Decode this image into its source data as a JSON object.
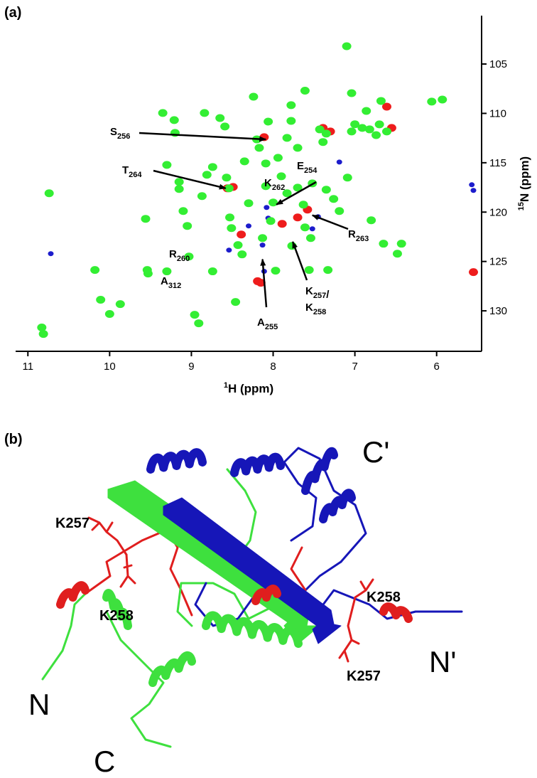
{
  "chart_data": {
    "type": "scatter",
    "panel_label": "(a)",
    "x_label": {
      "sup": "1",
      "text": "H (ppm)"
    },
    "y_label": {
      "sup": "15",
      "text": "N (ppm)"
    },
    "xlim": [
      11.15,
      5.45
    ],
    "xticks": [
      11,
      10,
      9,
      8,
      7,
      6
    ],
    "ylim": [
      134.1,
      100.1
    ],
    "yticks": [
      105,
      110,
      115,
      120,
      125,
      130
    ],
    "y_axis_side": "right",
    "grid": false,
    "series": [
      {
        "color": "#ee1c1c",
        "x": [
          8.11,
          8.56,
          8.49,
          7.89,
          7.7,
          7.58,
          8.15,
          8.19,
          7.39,
          7.3,
          5.55,
          8.39,
          6.61,
          6.55
        ],
        "values": [
          112.41,
          117.59,
          117.45,
          121.19,
          120.54,
          119.75,
          127.16,
          127.0,
          111.47,
          111.83,
          126.08,
          122.27,
          109.32,
          111.47
        ]
      },
      {
        "color": "#1c1ccc",
        "x": [
          10.72,
          8.3,
          8.06,
          8.11,
          7.45,
          7.52,
          7.19,
          5.55,
          5.57,
          8.13,
          8.08,
          8.54
        ],
        "values": [
          124.21,
          121.4,
          120.61,
          126.0,
          120.47,
          121.69,
          114.93,
          117.8,
          117.23,
          123.34,
          119.53,
          123.85
        ]
      },
      {
        "color": "#33ee33",
        "x": [
          10.83,
          10.81,
          10.74,
          10.18,
          10.11,
          10.0,
          9.87,
          9.35,
          9.21,
          9.2,
          9.15,
          9.15,
          9.1,
          8.87,
          8.84,
          8.81,
          8.65,
          8.59,
          8.57,
          8.54,
          8.53,
          8.51,
          8.43,
          8.38,
          8.24,
          8.2,
          8.17,
          8.09,
          8.09,
          8.06,
          7.94,
          7.9,
          7.83,
          7.78,
          7.78,
          7.7,
          7.63,
          7.61,
          7.54,
          7.43,
          7.35,
          7.26,
          7.19,
          7.09,
          7.04,
          6.91,
          6.86,
          6.82,
          6.7,
          6.68,
          6.61,
          6.48,
          6.65,
          6.06,
          7.1,
          5.93,
          6.43,
          9.03,
          9.54,
          9.53,
          9.05,
          9.3,
          8.74,
          7.97,
          8.0,
          8.3,
          8.03,
          8.13,
          7.83,
          8.35,
          8.74,
          9.3,
          8.46,
          8.96,
          8.91,
          9.56,
          7.7,
          7.52,
          7.35,
          7.33,
          6.8,
          7.56,
          7.77,
          7.0,
          6.74,
          7.39,
          7.04,
          7.61
        ],
        "values": [
          131.69,
          132.34,
          118.09,
          125.86,
          128.88,
          130.32,
          129.32,
          109.96,
          110.68,
          111.98,
          116.94,
          117.66,
          119.89,
          118.38,
          109.96,
          116.22,
          110.47,
          111.33,
          116.51,
          117.59,
          120.54,
          121.62,
          123.34,
          124.28,
          108.31,
          112.63,
          113.49,
          115.07,
          117.37,
          110.83,
          114.5,
          116.37,
          112.48,
          109.17,
          110.76,
          117.52,
          119.24,
          121.55,
          122.63,
          111.62,
          112.05,
          118.67,
          119.89,
          116.51,
          111.83,
          111.47,
          109.75,
          111.62,
          111.11,
          108.74,
          111.83,
          124.21,
          123.2,
          108.81,
          103.2,
          108.6,
          123.2,
          124.5,
          125.86,
          126.22,
          121.4,
          126.0,
          126.0,
          125.93,
          119.03,
          119.1,
          120.9,
          122.63,
          118.09,
          114.86,
          115.43,
          115.22,
          129.1,
          130.4,
          131.26,
          120.68,
          113.49,
          117.09,
          117.73,
          125.86,
          120.83,
          125.86,
          123.42,
          111.1,
          112.2,
          112.9,
          107.95,
          107.7
        ]
      }
    ],
    "annotations": [
      {
        "lines": [
          [
            {
              "text": "S",
              "sub": "256"
            }
          ]
        ],
        "x": 8.09,
        "y": 112.63
      },
      {
        "lines": [
          [
            {
              "text": "T",
              "sub": "264"
            }
          ]
        ],
        "x": 8.58,
        "y": 117.59
      },
      {
        "lines": [
          [
            {
              "text": "K",
              "sub": "262"
            }
          ]
        ]
      },
      {
        "lines": [
          [
            {
              "text": "E",
              "sub": "254"
            }
          ]
        ],
        "x": 7.96,
        "y": 119.24
      },
      {
        "lines": [
          [
            {
              "text": "R",
              "sub": "263"
            }
          ]
        ],
        "x": 7.52,
        "y": 120.32
      },
      {
        "lines": [
          [
            {
              "text": "R",
              "sub": "260"
            }
          ]
        ]
      },
      {
        "lines": [
          [
            {
              "text": "A",
              "sub": "312"
            }
          ]
        ]
      },
      {
        "lines": [
          [
            {
              "text": "K",
              "sub": "257"
            },
            {
              "text": "/"
            }
          ],
          [
            {
              "text": "K",
              "sub": "258"
            }
          ]
        ],
        "x": 7.76,
        "y": 123.0
      },
      {
        "lines": [
          [
            {
              "text": "A",
              "sub": "255"
            }
          ]
        ],
        "x": 8.13,
        "y": 124.78
      }
    ]
  },
  "panel_b": {
    "panel_label": "(b)",
    "labels": [
      "K257",
      "K258",
      "N",
      "C",
      "C'",
      "K258",
      "N'",
      "K257"
    ]
  }
}
